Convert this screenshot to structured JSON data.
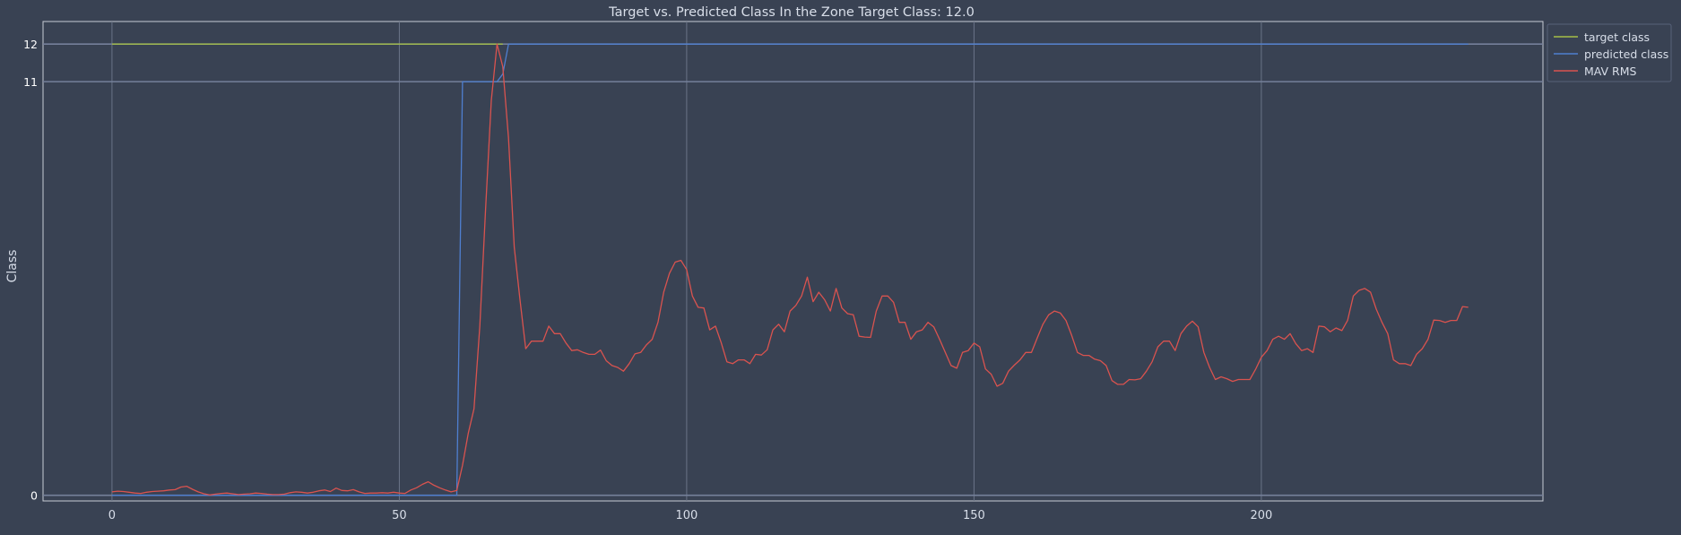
{
  "chart_data": {
    "type": "line",
    "title": "Target vs. Predicted Class In the Zone Target Class: 12.0",
    "xlabel": "",
    "ylabel": "Class",
    "xlim": [
      -12,
      249
    ],
    "ylim": [
      -0.15,
      12.6
    ],
    "x_ticks": [
      0,
      50,
      100,
      150,
      200
    ],
    "y_ticks": [
      0,
      11,
      12
    ],
    "grid": true,
    "legend_position": "outside-top-right",
    "series": [
      {
        "name": "target class",
        "color": "#a5be48",
        "x": [
          0,
          68
        ],
        "y": [
          12,
          12
        ]
      },
      {
        "name": "predicted class",
        "color": "#4f7fd0",
        "x": [
          0,
          60,
          61,
          66,
          67,
          68,
          69,
          236
        ],
        "y": [
          0,
          0,
          11,
          11,
          11,
          11.2,
          12,
          12
        ]
      },
      {
        "name": "MAV RMS",
        "color": "#d9534f",
        "x": [
          0,
          1,
          2,
          3,
          4,
          5,
          6,
          7,
          8,
          9,
          10,
          11,
          12,
          13,
          14,
          15,
          16,
          17,
          18,
          19,
          20,
          21,
          22,
          23,
          24,
          25,
          26,
          27,
          28,
          29,
          30,
          31,
          32,
          33,
          34,
          35,
          36,
          37,
          38,
          39,
          40,
          41,
          42,
          43,
          44,
          45,
          46,
          47,
          48,
          49,
          50,
          51,
          52,
          53,
          54,
          55,
          56,
          57,
          58,
          59,
          60,
          61,
          62,
          63,
          64,
          65,
          66,
          67,
          68,
          69,
          70,
          71,
          72,
          73,
          74,
          75,
          76,
          77,
          78,
          79,
          80,
          81,
          82,
          83,
          84,
          85,
          86,
          87,
          88,
          89,
          90,
          91,
          92,
          93,
          94,
          95,
          96,
          97,
          98,
          99,
          100,
          101,
          102,
          103,
          104,
          105,
          106,
          107,
          108,
          109,
          110,
          111,
          112,
          113,
          114,
          115,
          116,
          117,
          118,
          119,
          120,
          121,
          122,
          123,
          124,
          125,
          126,
          127,
          128,
          129,
          130,
          131,
          132,
          133,
          134,
          135,
          136,
          137,
          138,
          139,
          140,
          141,
          142,
          143,
          144,
          145,
          146,
          147,
          148,
          149,
          150,
          151,
          152,
          153,
          154,
          155,
          156,
          157,
          158,
          159,
          160,
          161,
          162,
          163,
          164,
          165,
          166,
          167,
          168,
          169,
          170,
          171,
          172,
          173,
          174,
          175,
          176,
          177,
          178,
          179,
          180,
          181,
          182,
          183,
          184,
          185,
          186,
          187,
          188,
          189,
          190,
          191,
          192,
          193,
          194,
          195,
          196,
          197,
          198,
          199,
          200,
          201,
          202,
          203,
          204,
          205,
          206,
          207,
          208,
          209,
          210,
          211,
          212,
          213,
          214,
          215,
          216,
          217,
          218,
          219,
          220,
          221,
          222,
          223,
          224,
          225,
          226,
          227,
          228,
          229,
          230,
          231,
          232,
          233,
          234,
          235,
          236
        ],
        "y": [
          0.09,
          0.11,
          0.1,
          0.08,
          0.06,
          0.05,
          0.08,
          0.1,
          0.11,
          0.12,
          0.14,
          0.15,
          0.22,
          0.24,
          0.16,
          0.09,
          0.04,
          0.01,
          0.03,
          0.05,
          0.06,
          0.04,
          0.02,
          0.03,
          0.04,
          0.06,
          0.05,
          0.03,
          0.02,
          0.02,
          0.03,
          0.07,
          0.09,
          0.08,
          0.06,
          0.08,
          0.12,
          0.14,
          0.1,
          0.19,
          0.13,
          0.12,
          0.15,
          0.09,
          0.05,
          0.06,
          0.06,
          0.07,
          0.06,
          0.08,
          0.06,
          0.05,
          0.14,
          0.2,
          0.29,
          0.36,
          0.27,
          0.2,
          0.14,
          0.09,
          0.13,
          0.8,
          1.65,
          2.3,
          4.5,
          7.6,
          10.5,
          12.0,
          11.4,
          9.5,
          6.6,
          5.2,
          3.9,
          4.1,
          4.1,
          4.1,
          4.5,
          4.3,
          4.3,
          4.05,
          3.85,
          3.87,
          3.8,
          3.75,
          3.75,
          3.86,
          3.58,
          3.45,
          3.4,
          3.3,
          3.5,
          3.76,
          3.8,
          4.0,
          4.15,
          4.6,
          5.4,
          5.9,
          6.2,
          6.25,
          6.0,
          5.3,
          5.0,
          4.98,
          4.4,
          4.5,
          4.06,
          3.55,
          3.5,
          3.6,
          3.6,
          3.5,
          3.75,
          3.73,
          3.87,
          4.4,
          4.55,
          4.35,
          4.9,
          5.05,
          5.3,
          5.8,
          5.15,
          5.4,
          5.2,
          4.9,
          5.5,
          4.98,
          4.83,
          4.8,
          4.23,
          4.21,
          4.2,
          4.9,
          5.3,
          5.3,
          5.13,
          4.6,
          4.6,
          4.15,
          4.35,
          4.4,
          4.6,
          4.48,
          4.15,
          3.8,
          3.45,
          3.38,
          3.8,
          3.85,
          4.05,
          3.95,
          3.36,
          3.22,
          2.9,
          2.98,
          3.3,
          3.46,
          3.6,
          3.8,
          3.8,
          4.18,
          4.55,
          4.8,
          4.9,
          4.85,
          4.65,
          4.25,
          3.8,
          3.72,
          3.72,
          3.62,
          3.58,
          3.45,
          3.05,
          2.95,
          2.95,
          3.08,
          3.07,
          3.1,
          3.3,
          3.55,
          3.95,
          4.1,
          4.1,
          3.85,
          4.3,
          4.5,
          4.63,
          4.48,
          3.8,
          3.4,
          3.08,
          3.15,
          3.1,
          3.03,
          3.08,
          3.08,
          3.08,
          3.35,
          3.67,
          3.85,
          4.15,
          4.23,
          4.15,
          4.3,
          4.03,
          3.85,
          3.9,
          3.8,
          4.5,
          4.48,
          4.35,
          4.45,
          4.38,
          4.65,
          5.3,
          5.45,
          5.5,
          5.4,
          4.95,
          4.6,
          4.3,
          3.6,
          3.5,
          3.5,
          3.45,
          3.75,
          3.9,
          4.15,
          4.66,
          4.65,
          4.6,
          4.65,
          4.65,
          5.02,
          5.0
        ]
      }
    ]
  }
}
